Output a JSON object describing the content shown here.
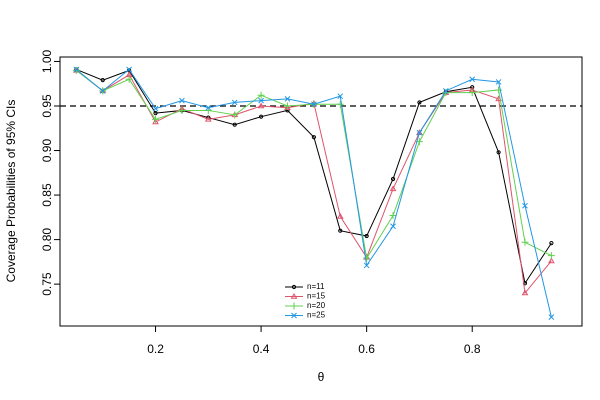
{
  "chart_data": {
    "type": "line",
    "x_label": "θ",
    "y_label": "Coverage Probabilities of 95% CIs",
    "x": [
      0.05,
      0.1,
      0.15,
      0.2,
      0.25,
      0.3,
      0.35,
      0.4,
      0.45,
      0.5,
      0.55,
      0.6,
      0.65,
      0.7,
      0.75,
      0.8,
      0.85,
      0.9,
      0.95
    ],
    "series": [
      {
        "name": "n=11",
        "color": "#000000",
        "marker": "circle",
        "values": [
          0.991,
          0.979,
          0.99,
          0.942,
          0.945,
          0.937,
          0.929,
          0.938,
          0.945,
          0.915,
          0.81,
          0.804,
          0.868,
          0.954,
          0.966,
          0.971,
          0.898,
          0.751,
          0.796
        ]
      },
      {
        "name": "n=15",
        "color": "#DF536B",
        "marker": "triangle",
        "values": [
          0.99,
          0.967,
          0.985,
          0.932,
          0.947,
          0.935,
          0.94,
          0.95,
          0.948,
          0.953,
          0.826,
          0.78,
          0.857,
          0.92,
          0.965,
          0.968,
          0.958,
          0.74,
          0.776
        ]
      },
      {
        "name": "n=20",
        "color": "#61D04F",
        "marker": "plus",
        "values": [
          0.99,
          0.967,
          0.98,
          0.935,
          0.945,
          0.945,
          0.94,
          0.962,
          0.95,
          0.952,
          0.952,
          0.779,
          0.827,
          0.91,
          0.965,
          0.965,
          0.968,
          0.797,
          0.782
        ]
      },
      {
        "name": "n=25",
        "color": "#2297E6",
        "marker": "cross",
        "values": [
          0.991,
          0.967,
          0.991,
          0.947,
          0.956,
          0.948,
          0.954,
          0.956,
          0.958,
          0.952,
          0.961,
          0.771,
          0.815,
          0.92,
          0.967,
          0.98,
          0.977,
          0.838,
          0.713
        ]
      }
    ],
    "reference_line": 0.95,
    "xlim": [
      0.019,
      1.008
    ],
    "ylim": [
      0.703,
      1.005
    ],
    "xticks": [
      0.2,
      0.4,
      0.6,
      0.8
    ],
    "yticks": [
      0.75,
      {
        "value": 0.8,
        "label": "0.80"
      },
      0.85,
      {
        "value": 0.9,
        "label": "0.90"
      },
      0.95,
      {
        "value": 1,
        "label": "1.00"
      }
    ],
    "legend": "bottom"
  }
}
